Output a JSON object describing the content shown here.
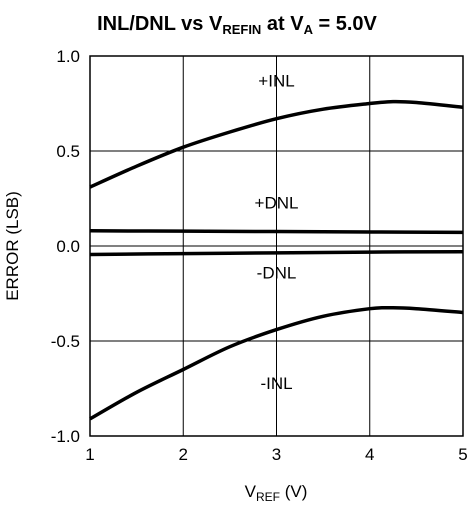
{
  "chart_data": {
    "type": "line",
    "title": {
      "main": "INL/DNL vs V",
      "sub1": "REFIN",
      "mid": " at V",
      "sub2": "A",
      "tail": " = 5.0V"
    },
    "xlabel": {
      "main": "V",
      "sub": "REF",
      "tail": " (V)"
    },
    "ylabel": "ERROR (LSB)",
    "xlim": [
      1,
      5
    ],
    "ylim": [
      -1.0,
      1.0
    ],
    "grid": true,
    "x_ticks": [
      1,
      2,
      3,
      4,
      5
    ],
    "x_tick_labels": [
      "1",
      "2",
      "3",
      "4",
      "5"
    ],
    "y_ticks": [
      1.0,
      0.5,
      0.0,
      -0.5,
      -1.0
    ],
    "y_tick_labels": [
      "1.0",
      "0.5",
      "0.0",
      "-0.5",
      "-1.0"
    ],
    "series": [
      {
        "name": "+INL",
        "x": [
          1.0,
          1.5,
          2.0,
          2.5,
          3.0,
          3.5,
          4.0,
          4.25,
          4.5,
          5.0
        ],
        "y": [
          0.31,
          0.42,
          0.52,
          0.6,
          0.67,
          0.72,
          0.75,
          0.76,
          0.755,
          0.73
        ]
      },
      {
        "name": "+DNL",
        "x": [
          1.0,
          2.0,
          3.0,
          4.0,
          5.0
        ],
        "y": [
          0.08,
          0.078,
          0.076,
          0.074,
          0.072
        ]
      },
      {
        "name": "-DNL",
        "x": [
          1.0,
          2.0,
          3.0,
          4.0,
          5.0
        ],
        "y": [
          -0.045,
          -0.04,
          -0.036,
          -0.032,
          -0.03
        ]
      },
      {
        "name": "-INL",
        "x": [
          1.0,
          1.5,
          2.0,
          2.5,
          3.0,
          3.5,
          4.0,
          4.25,
          4.5,
          5.0
        ],
        "y": [
          -0.91,
          -0.77,
          -0.65,
          -0.53,
          -0.44,
          -0.37,
          -0.33,
          -0.325,
          -0.33,
          -0.35
        ]
      }
    ],
    "series_labels": [
      {
        "text": "+INL",
        "x": 3.0,
        "y": 0.87
      },
      {
        "text": "+DNL",
        "x": 3.0,
        "y": 0.23
      },
      {
        "text": "-DNL",
        "x": 3.0,
        "y": -0.14
      },
      {
        "text": "-INL",
        "x": 3.0,
        "y": -0.72
      }
    ]
  }
}
